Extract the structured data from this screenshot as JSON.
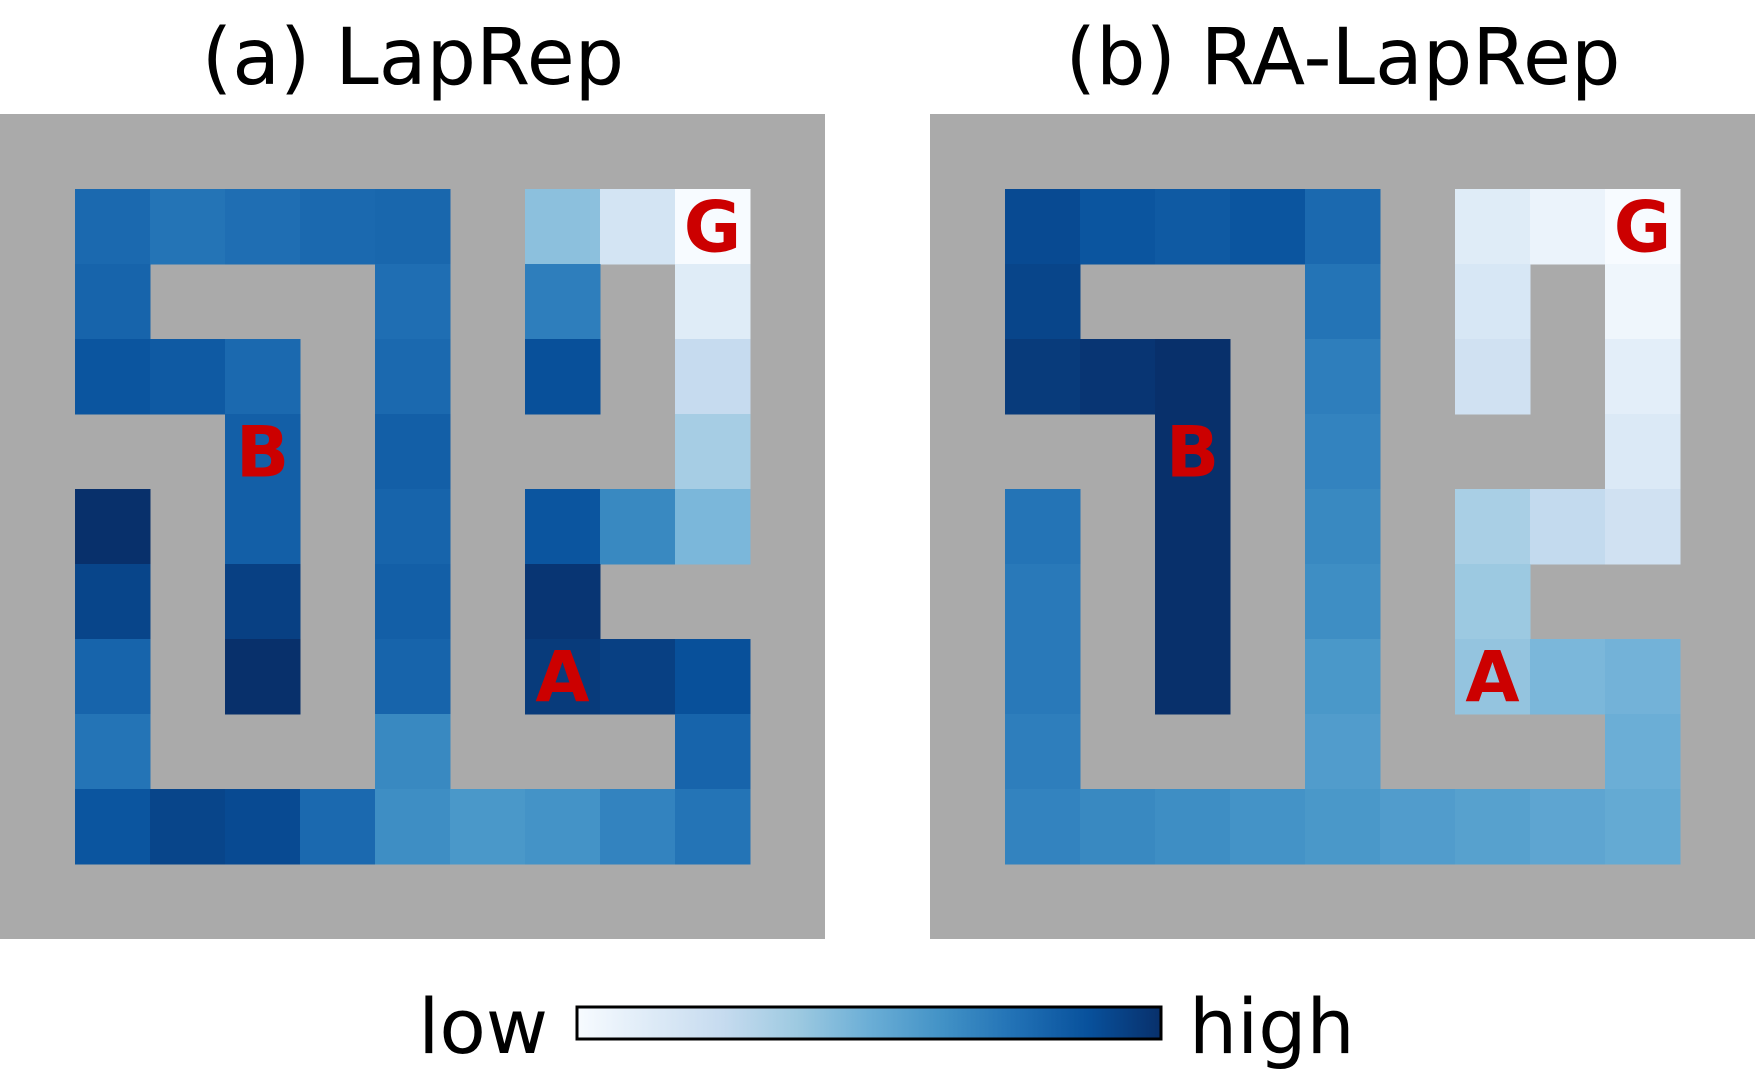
{
  "wall_color": "#aaaaaa",
  "marker_color": "#cc0000",
  "colormap": {
    "name": "Blues",
    "stops": [
      "#f7fbff",
      "#deebf7",
      "#c6dbef",
      "#9ecae1",
      "#6baed6",
      "#4292c6",
      "#2171b5",
      "#08519c",
      "#08306b"
    ]
  },
  "panels": [
    {
      "id": "a",
      "title": "(a) LapRep",
      "grid": [
        [
          null,
          null,
          null,
          null,
          null,
          null,
          null,
          null,
          null,
          null,
          null
        ],
        [
          null,
          0.78,
          0.74,
          0.76,
          0.78,
          0.79,
          null,
          0.42,
          0.18,
          0.0,
          null
        ],
        [
          null,
          0.8,
          null,
          null,
          null,
          0.76,
          null,
          0.7,
          null,
          0.12,
          null
        ],
        [
          null,
          0.86,
          0.84,
          0.78,
          null,
          0.78,
          null,
          0.88,
          null,
          0.25,
          null
        ],
        [
          null,
          null,
          null,
          0.82,
          null,
          0.82,
          null,
          null,
          null,
          0.35,
          null
        ],
        [
          null,
          1.0,
          null,
          0.82,
          null,
          0.8,
          null,
          0.86,
          0.66,
          0.46,
          null
        ],
        [
          null,
          0.92,
          null,
          0.94,
          null,
          0.82,
          null,
          0.98,
          null,
          null,
          null
        ],
        [
          null,
          0.8,
          null,
          1.0,
          null,
          0.8,
          null,
          0.96,
          0.94,
          0.88,
          null
        ],
        [
          null,
          0.74,
          null,
          null,
          null,
          0.66,
          null,
          null,
          null,
          0.8,
          null
        ],
        [
          null,
          0.86,
          0.92,
          0.9,
          0.78,
          0.64,
          0.6,
          0.62,
          0.68,
          0.74,
          null
        ],
        [
          null,
          null,
          null,
          null,
          null,
          null,
          null,
          null,
          null,
          null,
          null
        ]
      ],
      "markers": [
        {
          "label": "G",
          "row": 1,
          "col": 9
        },
        {
          "label": "B",
          "row": 4,
          "col": 3
        },
        {
          "label": "A",
          "row": 7,
          "col": 7
        }
      ]
    },
    {
      "id": "b",
      "title": "(b) RA-LapRep",
      "grid": [
        [
          null,
          null,
          null,
          null,
          null,
          null,
          null,
          null,
          null,
          null,
          null
        ],
        [
          null,
          0.9,
          0.86,
          0.84,
          0.86,
          0.78,
          null,
          0.12,
          0.06,
          0.0,
          null
        ],
        [
          null,
          0.92,
          null,
          null,
          null,
          0.74,
          null,
          0.16,
          null,
          0.04,
          null
        ],
        [
          null,
          0.96,
          0.98,
          1.0,
          null,
          0.7,
          null,
          0.2,
          null,
          0.1,
          null
        ],
        [
          null,
          null,
          null,
          1.0,
          null,
          0.68,
          null,
          null,
          null,
          0.14,
          null
        ],
        [
          null,
          0.74,
          null,
          1.0,
          null,
          0.66,
          null,
          0.34,
          0.26,
          0.2,
          null
        ],
        [
          null,
          0.72,
          null,
          1.0,
          null,
          0.64,
          null,
          0.38,
          null,
          null,
          null
        ],
        [
          null,
          0.72,
          null,
          1.0,
          null,
          0.6,
          null,
          0.4,
          0.46,
          0.48,
          null
        ],
        [
          null,
          0.7,
          null,
          null,
          null,
          0.58,
          null,
          null,
          null,
          0.5,
          null
        ],
        [
          null,
          0.68,
          0.66,
          0.64,
          0.62,
          0.6,
          0.58,
          0.56,
          0.54,
          0.52,
          null
        ],
        [
          null,
          null,
          null,
          null,
          null,
          null,
          null,
          null,
          null,
          null,
          null
        ]
      ],
      "markers": [
        {
          "label": "G",
          "row": 1,
          "col": 9
        },
        {
          "label": "B",
          "row": 4,
          "col": 3
        },
        {
          "label": "A",
          "row": 7,
          "col": 7
        }
      ]
    }
  ],
  "legend": {
    "low_label": "low",
    "high_label": "high"
  }
}
